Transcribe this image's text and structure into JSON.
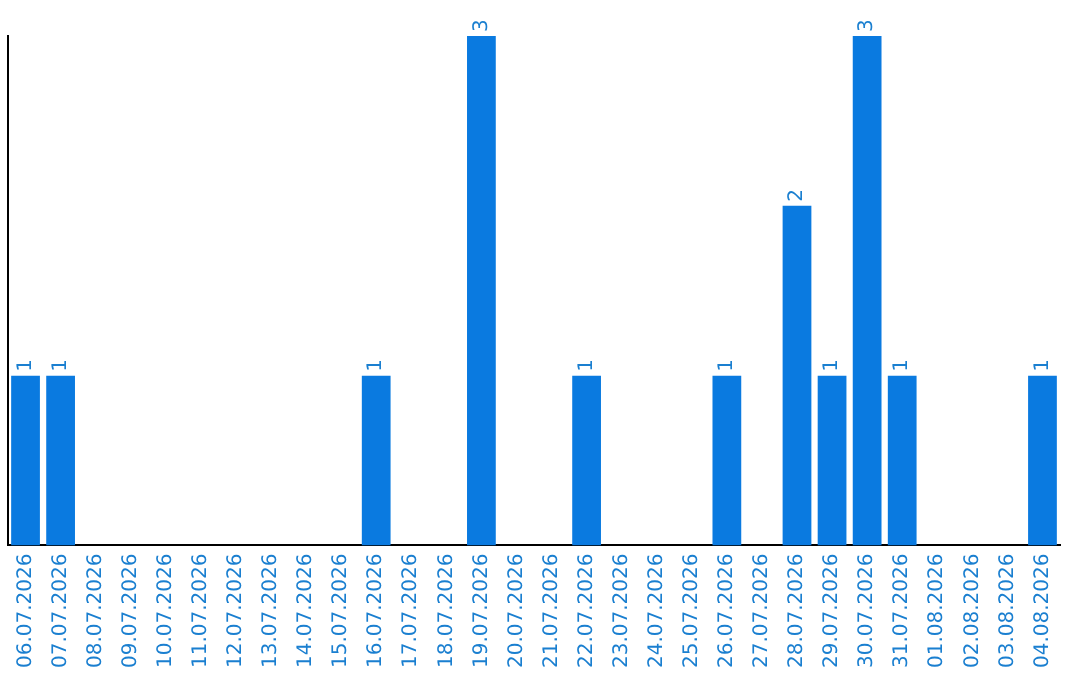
{
  "chart_data": {
    "type": "bar",
    "categories": [
      "06.07.2026",
      "07.07.2026",
      "08.07.2026",
      "09.07.2026",
      "10.07.2026",
      "11.07.2026",
      "12.07.2026",
      "13.07.2026",
      "14.07.2026",
      "15.07.2026",
      "16.07.2026",
      "17.07.2026",
      "18.07.2026",
      "19.07.2026",
      "20.07.2026",
      "21.07.2026",
      "22.07.2026",
      "23.07.2026",
      "24.07.2026",
      "25.07.2026",
      "26.07.2026",
      "27.07.2026",
      "28.07.2026",
      "29.07.2026",
      "30.07.2026",
      "31.07.2026",
      "01.08.2026",
      "02.08.2026",
      "03.08.2026",
      "04.08.2026"
    ],
    "values": [
      1,
      1,
      0,
      0,
      0,
      0,
      0,
      0,
      0,
      0,
      1,
      0,
      0,
      3,
      0,
      0,
      1,
      0,
      0,
      0,
      1,
      0,
      2,
      1,
      3,
      1,
      0,
      0,
      0,
      1
    ],
    "value_labels": [
      "1",
      "1",
      null,
      null,
      null,
      null,
      null,
      null,
      null,
      null,
      "1",
      null,
      null,
      "3",
      null,
      null,
      "1",
      null,
      null,
      null,
      "1",
      null,
      "2",
      "1",
      "3",
      "1",
      null,
      null,
      null,
      "1"
    ],
    "color": "#0a7ae0",
    "ylim": [
      0,
      3
    ],
    "tick_labels": "x",
    "grid": false,
    "legend": false
  }
}
